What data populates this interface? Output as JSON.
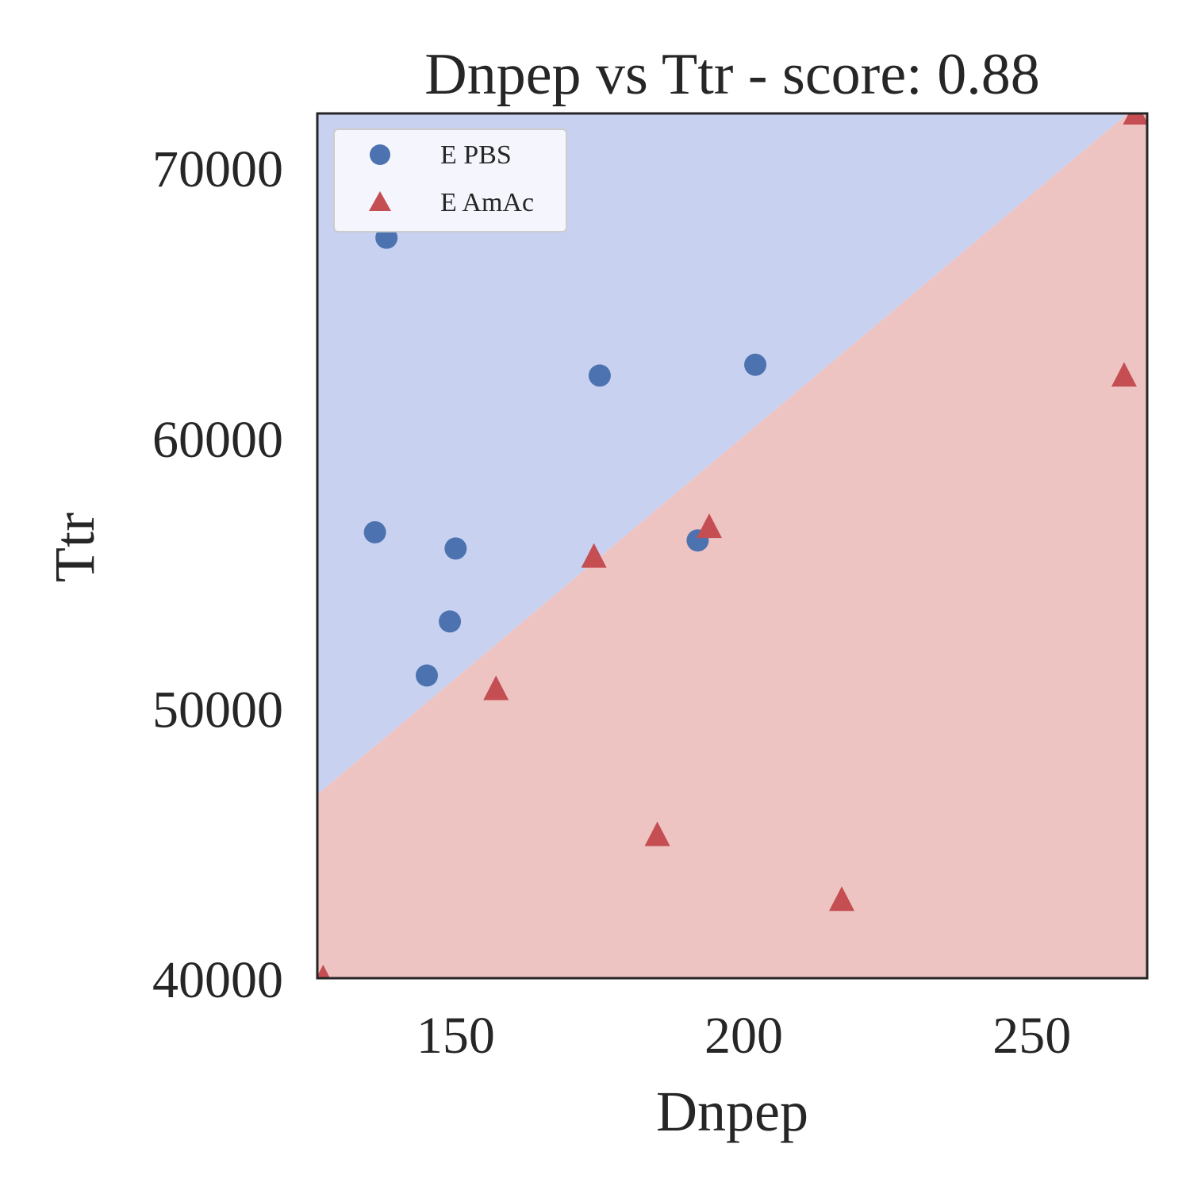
{
  "chart_data": {
    "type": "scatter",
    "title": "Dnpep vs Ttr - score: 0.88",
    "xlabel": "Dnpep",
    "ylabel": "Ttr",
    "xlim": [
      126,
      270
    ],
    "ylim": [
      40000,
      72000
    ],
    "x_ticks": [
      150,
      200,
      250
    ],
    "y_ticks": [
      40000,
      50000,
      60000,
      70000
    ],
    "x_tick_labels": [
      "150",
      "200",
      "250"
    ],
    "y_tick_labels": [
      "40000",
      "50000",
      "60000",
      "70000"
    ],
    "grid": false,
    "legend_position": "top-left",
    "decision_boundary": {
      "x": [
        126,
        270
      ],
      "y": [
        46800,
        72600
      ],
      "upper_region_class": "E PBS",
      "lower_region_class": "E AmAc",
      "upper_color": "#c8d1f0",
      "lower_color": "#eec4c3"
    },
    "series": [
      {
        "name": "E PBS",
        "marker": "circle",
        "color": "#4c72b0",
        "points": [
          {
            "x": 138,
            "y": 67400
          },
          {
            "x": 175,
            "y": 62300
          },
          {
            "x": 202,
            "y": 62700
          },
          {
            "x": 136,
            "y": 56500
          },
          {
            "x": 150,
            "y": 55900
          },
          {
            "x": 149,
            "y": 53200
          },
          {
            "x": 145,
            "y": 51200
          },
          {
            "x": 192,
            "y": 56200
          }
        ]
      },
      {
        "name": "E AmAc",
        "marker": "triangle",
        "color": "#c44e52",
        "points": [
          {
            "x": 268,
            "y": 72000
          },
          {
            "x": 266,
            "y": 62300
          },
          {
            "x": 194,
            "y": 56700
          },
          {
            "x": 174,
            "y": 55600
          },
          {
            "x": 157,
            "y": 50700
          },
          {
            "x": 185,
            "y": 45300
          },
          {
            "x": 217,
            "y": 42900
          },
          {
            "x": 127,
            "y": 40000
          }
        ]
      }
    ]
  }
}
